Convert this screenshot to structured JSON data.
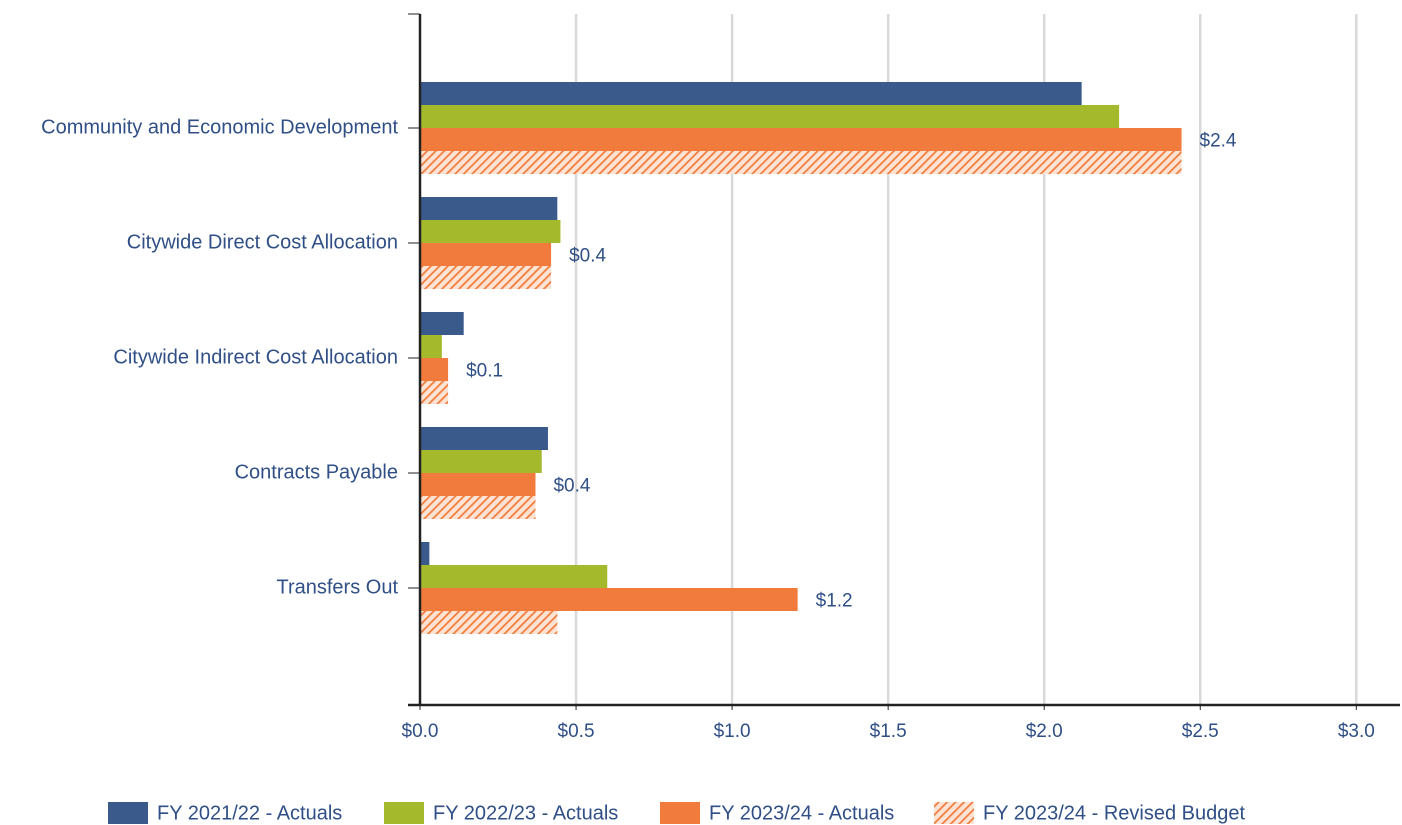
{
  "chart_data": {
    "type": "hbar",
    "categories": [
      "Community and Economic Development",
      "Citywide Direct Cost Allocation",
      "Citywide Indirect Cost Allocation",
      "Contracts Payable",
      "Transfers Out"
    ],
    "series": [
      {
        "name": "FY 2021/22 - Actuals",
        "color": "#3a5a8c",
        "values": [
          2.12,
          0.44,
          0.14,
          0.41,
          0.03
        ]
      },
      {
        "name": "FY 2022/23 - Actuals",
        "color": "#a5b92d",
        "values": [
          2.24,
          0.45,
          0.07,
          0.39,
          0.6
        ]
      },
      {
        "name": "FY 2023/24 - Actuals",
        "color": "#f07b3c",
        "values": [
          2.44,
          0.42,
          0.09,
          0.37,
          1.21
        ],
        "value_labels": [
          "$2.4",
          "$0.4",
          "$0.1",
          "$0.4",
          "$1.2"
        ]
      },
      {
        "name": "FY 2023/24 - Revised Budget",
        "color": "#f07b3c",
        "pattern": "hatch",
        "values": [
          2.44,
          0.42,
          0.09,
          0.37,
          0.44
        ]
      }
    ],
    "xlim": [
      0,
      3.14
    ],
    "xticks": [
      {
        "value": 0,
        "label": "$0.0"
      },
      {
        "value": 0.5,
        "label": "$0.5"
      },
      {
        "value": 1.0,
        "label": "$1.0"
      },
      {
        "value": 1.5,
        "label": "$1.5"
      },
      {
        "value": 2.0,
        "label": "$2.0"
      },
      {
        "value": 2.5,
        "label": "$2.5"
      },
      {
        "value": 3.0,
        "label": "$3.0"
      }
    ],
    "grid": true,
    "legend": "bottom"
  }
}
